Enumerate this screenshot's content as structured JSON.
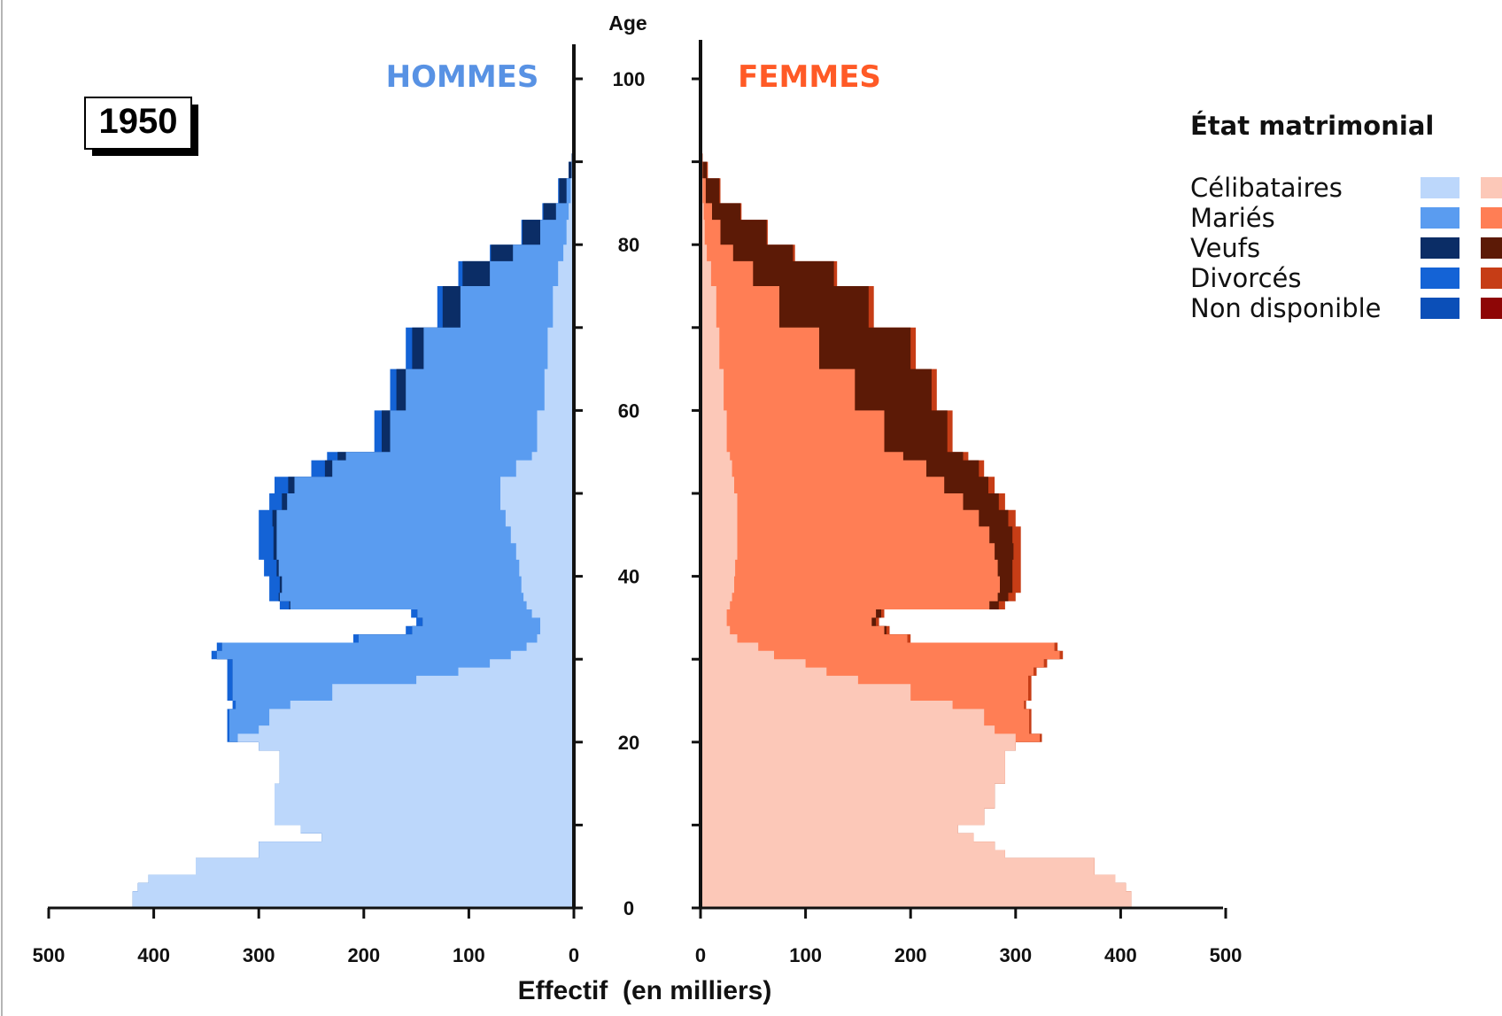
{
  "chart_data": {
    "type": "population-pyramid",
    "year_label": "1950",
    "men_label": "HOMMES",
    "women_label": "FEMMES",
    "age_axis_label": "Age",
    "x_axis_label": "Effectif  (en milliers)",
    "age_ticks": [
      0,
      20,
      40,
      60,
      80,
      100
    ],
    "x_ticks_men": [
      500,
      400,
      300,
      200,
      100,
      0
    ],
    "x_ticks_women": [
      0,
      100,
      200,
      300,
      400,
      500
    ],
    "xlim": [
      0,
      500
    ],
    "ylim": [
      0,
      105
    ],
    "legend": {
      "title": "État matrimonial",
      "entries": [
        {
          "label": "Célibataires",
          "men_color": "#bcd7fb",
          "women_color": "#fcc8b8"
        },
        {
          "label": "Mariés",
          "men_color": "#5a9cf0",
          "women_color": "#ff7e55"
        },
        {
          "label": "Veufs",
          "men_color": "#0b2d66",
          "women_color": "#5c1a06"
        },
        {
          "label": "Divorcés",
          "men_color": "#1463d6",
          "women_color": "#c63d16"
        },
        {
          "label": "Non disponible",
          "men_color": "#0b4fb8",
          "women_color": "#8e0606"
        }
      ]
    },
    "men_profile": {
      "ages": [
        0,
        2,
        3,
        4,
        6,
        7,
        8,
        9,
        10,
        12,
        15,
        19,
        20,
        21,
        22,
        24,
        25,
        27,
        28,
        29,
        30,
        31,
        32,
        33,
        34,
        35,
        36,
        37,
        38,
        40,
        42,
        44,
        46,
        48,
        50,
        52,
        54,
        55,
        60,
        65,
        70,
        75,
        78,
        80,
        83,
        85,
        88,
        90,
        91,
        92
      ],
      "total": [
        420,
        415,
        405,
        360,
        300,
        300,
        240,
        260,
        285,
        285,
        280,
        300,
        330,
        330,
        330,
        325,
        330,
        330,
        330,
        330,
        345,
        340,
        210,
        160,
        150,
        155,
        280,
        290,
        290,
        295,
        300,
        300,
        300,
        290,
        285,
        250,
        235,
        190,
        175,
        160,
        130,
        110,
        80,
        50,
        30,
        15,
        5,
        2,
        1,
        0
      ],
      "single": [
        420,
        415,
        405,
        360,
        300,
        300,
        240,
        260,
        285,
        285,
        280,
        300,
        320,
        300,
        290,
        270,
        230,
        150,
        110,
        80,
        60,
        45,
        35,
        32,
        32,
        40,
        45,
        48,
        50,
        52,
        55,
        60,
        65,
        70,
        70,
        55,
        40,
        35,
        28,
        25,
        20,
        15,
        10,
        7,
        5,
        3,
        2,
        1,
        0,
        0
      ],
      "married": [
        0,
        0,
        0,
        0,
        0,
        0,
        0,
        0,
        0,
        0,
        0,
        0,
        8,
        28,
        38,
        52,
        95,
        175,
        215,
        245,
        280,
        290,
        170,
        122,
        112,
        109,
        225,
        232,
        228,
        229,
        228,
        223,
        218,
        203,
        196,
        175,
        177,
        140,
        132,
        118,
        88,
        65,
        48,
        25,
        12,
        4,
        0,
        0,
        0,
        0
      ],
      "widowed": [
        0,
        0,
        0,
        0,
        0,
        0,
        0,
        0,
        0,
        0,
        0,
        0,
        0,
        0,
        0,
        0,
        0,
        0,
        0,
        0,
        0,
        0,
        0,
        0,
        0,
        0,
        1,
        1,
        2,
        2,
        3,
        3,
        4,
        5,
        6,
        7,
        8,
        8,
        9,
        11,
        17,
        26,
        21,
        17,
        12,
        7,
        3,
        1,
        1,
        0
      ],
      "divorced": [
        0,
        0,
        0,
        0,
        0,
        0,
        0,
        0,
        0,
        0,
        0,
        0,
        2,
        2,
        2,
        3,
        5,
        5,
        5,
        5,
        5,
        5,
        5,
        6,
        6,
        6,
        9,
        9,
        10,
        12,
        14,
        14,
        13,
        12,
        13,
        13,
        10,
        7,
        6,
        6,
        5,
        4,
        1,
        1,
        1,
        1,
        0,
        0,
        0,
        0
      ]
    },
    "women_profile": {
      "ages": [
        0,
        2,
        3,
        4,
        6,
        7,
        8,
        9,
        10,
        12,
        15,
        19,
        20,
        21,
        22,
        24,
        25,
        27,
        28,
        29,
        30,
        31,
        32,
        33,
        34,
        35,
        36,
        37,
        38,
        40,
        42,
        44,
        46,
        48,
        50,
        52,
        54,
        55,
        60,
        65,
        70,
        75,
        78,
        80,
        83,
        85,
        88,
        90,
        91,
        92
      ],
      "total": [
        410,
        405,
        395,
        375,
        290,
        280,
        260,
        245,
        270,
        280,
        290,
        300,
        325,
        315,
        315,
        310,
        315,
        315,
        320,
        330,
        345,
        340,
        200,
        180,
        170,
        175,
        290,
        300,
        305,
        305,
        305,
        305,
        300,
        290,
        280,
        270,
        255,
        240,
        225,
        205,
        165,
        130,
        90,
        65,
        40,
        20,
        8,
        3,
        1,
        0
      ],
      "single": [
        410,
        405,
        395,
        375,
        290,
        280,
        260,
        245,
        270,
        280,
        290,
        300,
        300,
        280,
        270,
        240,
        200,
        150,
        120,
        100,
        70,
        55,
        35,
        28,
        25,
        25,
        28,
        30,
        32,
        33,
        35,
        35,
        35,
        35,
        32,
        30,
        28,
        25,
        22,
        18,
        15,
        10,
        6,
        4,
        3,
        2,
        1,
        0,
        0,
        0
      ],
      "married": [
        0,
        0,
        0,
        0,
        0,
        0,
        0,
        0,
        0,
        0,
        0,
        0,
        23,
        33,
        43,
        68,
        112,
        162,
        197,
        227,
        272,
        282,
        162,
        147,
        138,
        142,
        247,
        253,
        253,
        250,
        245,
        240,
        230,
        215,
        200,
        185,
        165,
        150,
        125,
        95,
        60,
        40,
        25,
        15,
        8,
        3,
        1,
        0,
        0,
        0
      ],
      "widowed": [
        0,
        0,
        0,
        0,
        0,
        0,
        0,
        0,
        0,
        0,
        0,
        0,
        0,
        0,
        0,
        0,
        0,
        0,
        0,
        0,
        0,
        0,
        0,
        2,
        4,
        5,
        9,
        10,
        12,
        14,
        18,
        22,
        28,
        34,
        42,
        50,
        57,
        60,
        73,
        87,
        85,
        77,
        57,
        44,
        27,
        13,
        4,
        1,
        0,
        0
      ],
      "divorced": [
        0,
        0,
        0,
        0,
        0,
        0,
        0,
        0,
        0,
        0,
        0,
        0,
        2,
        2,
        2,
        2,
        3,
        3,
        3,
        3,
        3,
        3,
        3,
        3,
        3,
        3,
        6,
        7,
        8,
        8,
        7,
        8,
        7,
        6,
        6,
        5,
        5,
        5,
        5,
        5,
        5,
        3,
        2,
        1,
        1,
        1,
        1,
        1,
        0,
        0
      ]
    }
  }
}
